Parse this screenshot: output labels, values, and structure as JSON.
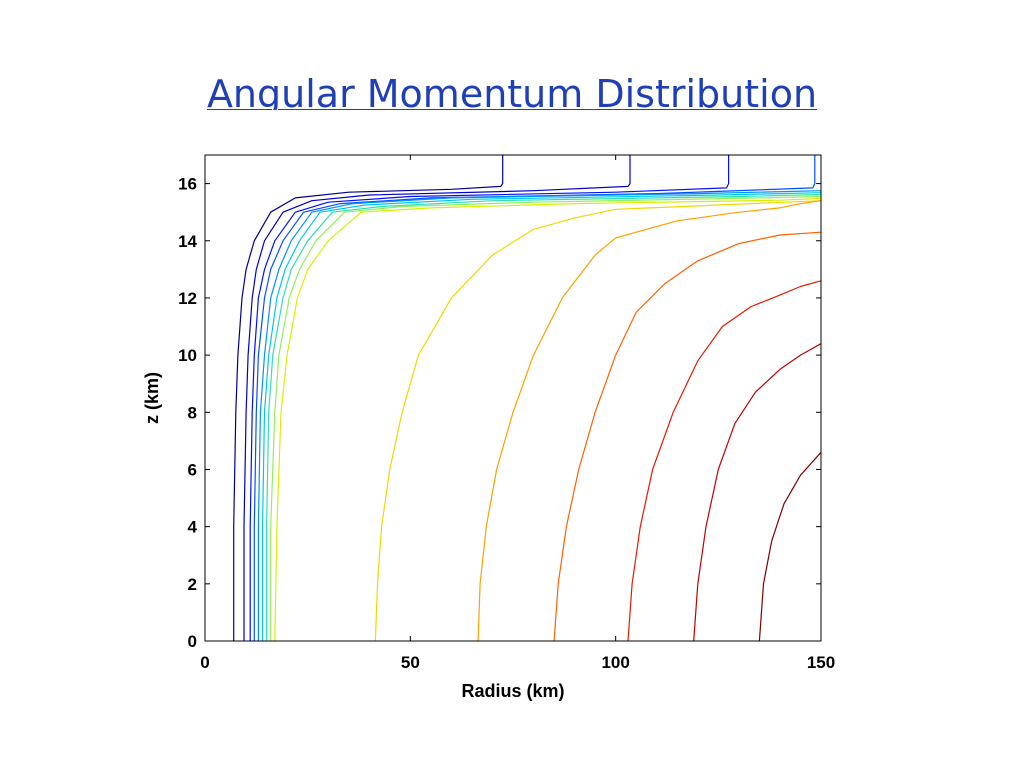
{
  "slide": {
    "title": "Angular Momentum Distribution"
  },
  "chart_data": {
    "type": "line",
    "xlabel": "Radius (km)",
    "ylabel": "z (km)",
    "xlim": [
      0,
      150
    ],
    "ylim": [
      0,
      17
    ],
    "xticks": [
      0,
      50,
      100,
      150
    ],
    "yticks": [
      0,
      2,
      4,
      6,
      8,
      10,
      12,
      14,
      16
    ],
    "grid": false,
    "legend": "none",
    "series": [
      {
        "color": "#00008f",
        "x": [
          7,
          7,
          7.5,
          8,
          9,
          10,
          12,
          16,
          22,
          35,
          60,
          72,
          72.5,
          72.5
        ],
        "y": [
          0,
          4,
          8,
          10,
          12,
          13,
          14,
          15,
          15.5,
          15.7,
          15.8,
          15.9,
          16,
          17
        ]
      },
      {
        "color": "#0000c8",
        "x": [
          9.5,
          9.5,
          10,
          10.5,
          11.5,
          12.5,
          14.5,
          19,
          26,
          40,
          80,
          103,
          103.5,
          103.5
        ],
        "y": [
          0,
          4,
          8,
          10,
          12,
          13,
          14,
          15,
          15.4,
          15.6,
          15.75,
          15.9,
          16,
          17
        ]
      },
      {
        "color": "#0010ff",
        "x": [
          11,
          11,
          11.5,
          12,
          13,
          14.5,
          17,
          22,
          30,
          50,
          100,
          127,
          127.5,
          127.5
        ],
        "y": [
          0,
          4,
          8,
          10,
          12,
          13,
          14,
          15,
          15.35,
          15.55,
          15.7,
          15.85,
          16,
          17
        ]
      },
      {
        "color": "#0050ff",
        "x": [
          12,
          12,
          12.5,
          13,
          14.5,
          16,
          19,
          24,
          33,
          55,
          110,
          148,
          148.5,
          148.5
        ],
        "y": [
          0,
          4,
          8,
          10,
          12,
          13,
          14,
          15,
          15.3,
          15.5,
          15.65,
          15.85,
          16,
          17
        ]
      },
      {
        "color": "#0090ff",
        "x": [
          13,
          13,
          13.5,
          14.5,
          16,
          18,
          21,
          26,
          36,
          60,
          120,
          150
        ],
        "y": [
          0,
          4,
          8,
          10,
          12,
          13,
          14,
          15,
          15.3,
          15.5,
          15.65,
          15.75
        ]
      },
      {
        "color": "#00c8e8",
        "x": [
          14,
          14,
          14.5,
          15.5,
          17.5,
          19.5,
          23,
          28,
          39,
          65,
          125,
          150
        ],
        "y": [
          0,
          4,
          8,
          10,
          12,
          13,
          14,
          15,
          15.25,
          15.45,
          15.6,
          15.68
        ]
      },
      {
        "color": "#30e0b0",
        "x": [
          15,
          15,
          15.5,
          16.5,
          19,
          21,
          25,
          31,
          43,
          70,
          130,
          150
        ],
        "y": [
          0,
          4,
          8,
          10,
          12,
          13,
          14,
          15,
          15.2,
          15.4,
          15.55,
          15.62
        ]
      },
      {
        "color": "#90f060",
        "x": [
          16,
          16,
          17,
          18,
          20.5,
          23,
          27,
          34,
          48,
          80,
          135,
          150
        ],
        "y": [
          0,
          4,
          8,
          10,
          12,
          13,
          14,
          15,
          15.2,
          15.35,
          15.5,
          15.55
        ]
      },
      {
        "color": "#d8f000",
        "x": [
          17,
          17.5,
          18.5,
          20,
          22.5,
          25,
          30,
          38,
          55,
          90,
          140,
          150
        ],
        "y": [
          0,
          4,
          8,
          10,
          12,
          13,
          14,
          15,
          15.15,
          15.3,
          15.42,
          15.48
        ]
      },
      {
        "color": "#f0d800",
        "x": [
          41.5,
          42,
          43,
          45,
          48,
          52,
          60,
          70,
          80,
          90,
          100,
          150
        ],
        "y": [
          0,
          2,
          4,
          6,
          8,
          10,
          12,
          13.5,
          14.4,
          14.8,
          15.1,
          15.4
        ]
      },
      {
        "color": "#ffa000",
        "x": [
          66.5,
          67,
          68.5,
          71,
          75,
          80,
          87,
          95,
          100,
          115,
          130,
          140,
          145,
          150
        ],
        "y": [
          0,
          2,
          4,
          6,
          8,
          10,
          12,
          13.5,
          14.1,
          14.7,
          15,
          15.15,
          15.3,
          15.4
        ]
      },
      {
        "color": "#ff6000",
        "x": [
          85,
          86,
          88,
          91,
          95,
          100,
          105,
          112,
          120,
          130,
          140,
          150
        ],
        "y": [
          0,
          2,
          4,
          6,
          8,
          10,
          11.5,
          12.5,
          13.3,
          13.9,
          14.2,
          14.3
        ]
      },
      {
        "color": "#e81800",
        "x": [
          103,
          104,
          106,
          109,
          114,
          120,
          126,
          133,
          140,
          145,
          150
        ],
        "y": [
          0,
          2,
          4,
          6,
          8,
          9.8,
          11,
          11.7,
          12.1,
          12.4,
          12.6
        ]
      },
      {
        "color": "#c00000",
        "x": [
          119,
          120,
          122,
          125,
          129,
          134,
          140,
          145,
          150
        ],
        "y": [
          0,
          2,
          4,
          6,
          7.6,
          8.7,
          9.5,
          10,
          10.4
        ]
      },
      {
        "color": "#800000",
        "x": [
          135,
          136,
          138,
          141,
          145,
          150
        ],
        "y": [
          0,
          2,
          3.5,
          4.8,
          5.8,
          6.6
        ]
      }
    ]
  }
}
